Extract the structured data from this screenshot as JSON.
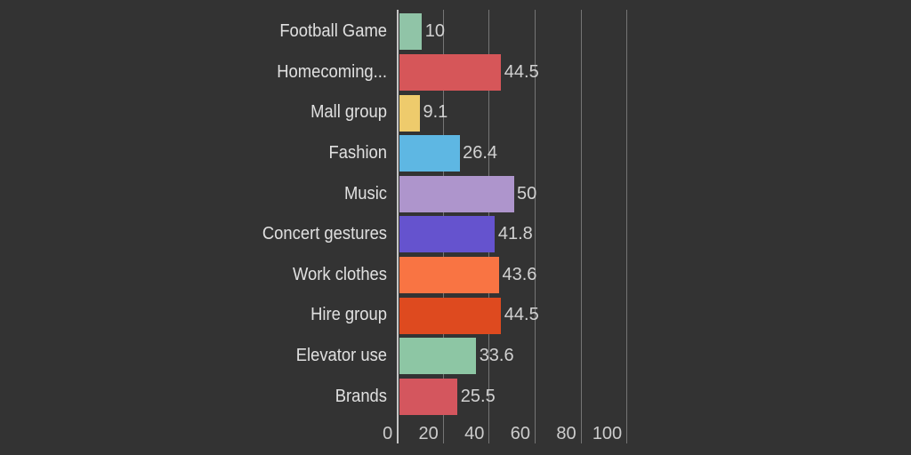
{
  "chart_data": {
    "type": "bar",
    "orientation": "horizontal",
    "title": "",
    "xlabel": "",
    "ylabel": "",
    "xlim": [
      0,
      100
    ],
    "x_ticks": [
      0,
      20,
      40,
      60,
      80,
      100
    ],
    "grid": true,
    "categories": [
      "Football Game",
      "Homecoming...",
      "Mall group",
      "Fashion",
      "Music",
      "Concert gestures",
      "Work clothes",
      "Hire group",
      "Elevator use",
      "Brands"
    ],
    "values": [
      10,
      44.5,
      9.1,
      26.4,
      50,
      41.8,
      43.6,
      44.5,
      33.6,
      25.5
    ],
    "value_labels": [
      "10",
      "44.5",
      "9.1",
      "26.4",
      "50",
      "41.8",
      "43.6",
      "44.5",
      "33.6",
      "25.5"
    ],
    "bar_colors": [
      "#90C4A7",
      "#D65659",
      "#EECB6C",
      "#5EB7E3",
      "#AE95CC",
      "#6553CE",
      "#F97443",
      "#DE4A1F",
      "#8DC6A4",
      "#D4565E"
    ]
  },
  "colors": {
    "background": "#333333",
    "gridline": "#757575",
    "axis_line": "#C6C6C6",
    "category_label": "#E0E0E0",
    "value_label": "#D2D2D2",
    "tick_label": "#CCCCCC"
  }
}
